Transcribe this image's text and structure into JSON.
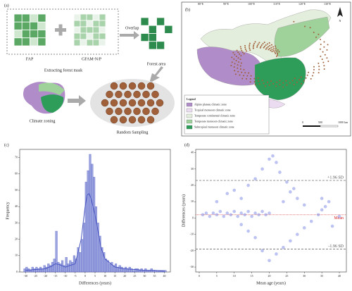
{
  "panel_a": {
    "label": "(a)",
    "fap": "FAP",
    "gfam": "GFAM-N/P",
    "overlap": "Overlap",
    "extracting": "Extracting forest mask",
    "forest_area": "Forest area",
    "climate_zoning": "Climate zoning",
    "random_sampling": "Random Sampling"
  },
  "panel_b": {
    "label": "(b)",
    "north": "N",
    "lon_labels": [
      "80°E",
      "90°E",
      "100°E",
      "110°E",
      "120°E",
      "130°E"
    ],
    "legend_title": "Legend",
    "zones": [
      {
        "name": "Alpine plateau climatic zone",
        "color": "#b08cc8"
      },
      {
        "name": "Tropical monsoon climatic zone",
        "color": "#ecdcf2"
      },
      {
        "name": "Temperate continental climatic zone",
        "color": "#e4eedc"
      },
      {
        "name": "Temperate monsoon climatic zone",
        "color": "#9fd19a"
      },
      {
        "name": "Subtropical monsoon climatic zone",
        "color": "#2e9d5a"
      }
    ],
    "scale_labels": [
      "0",
      "500",
      "1000 km"
    ]
  },
  "chart_data": [
    {
      "type": "histogram",
      "label": "(c)",
      "x_label": "Differences (years)",
      "y_label": "Frequency",
      "color": "#7b86d6",
      "line_color": "#4a56c0",
      "bins": [
        -31,
        -30,
        -29,
        -28,
        -27,
        -26,
        -25,
        -24,
        -23,
        -22,
        -21,
        -20,
        -19,
        -18,
        -17,
        -16,
        -15,
        -14,
        -13,
        -12,
        -11,
        -10,
        -9,
        -8,
        -7,
        -6,
        -5,
        -4,
        -3,
        -2,
        -1,
        0,
        1,
        2,
        3,
        4,
        5,
        6,
        7,
        8,
        9,
        10,
        11,
        12,
        13,
        14,
        15,
        16,
        17,
        18,
        19,
        20,
        21,
        22,
        23,
        24,
        25,
        26,
        27,
        28,
        29,
        30,
        31,
        32,
        33,
        34,
        35,
        36,
        37,
        38,
        39,
        40,
        41
      ],
      "values": [
        2,
        3,
        2,
        1,
        3,
        2,
        3,
        2,
        3,
        2,
        4,
        3,
        5,
        4,
        6,
        8,
        25,
        6,
        5,
        7,
        4,
        9,
        5,
        7,
        6,
        10,
        8,
        15,
        12,
        20,
        30,
        55,
        62,
        72,
        66,
        58,
        40,
        30,
        22,
        15,
        12,
        8,
        7,
        5,
        6,
        4,
        5,
        3,
        4,
        3,
        2,
        3,
        2,
        3,
        2,
        1,
        2,
        2,
        1,
        2,
        1,
        2,
        1,
        1,
        2,
        1,
        1,
        1,
        1,
        1,
        1,
        1
      ],
      "kde": {
        "x": [
          -30,
          -25,
          -20,
          -17,
          -15,
          -13,
          -10,
          -5,
          -2,
          0,
          1,
          2,
          3,
          5,
          8,
          10,
          15,
          20,
          25,
          30,
          35,
          40
        ],
        "values": [
          1,
          1.5,
          2,
          3.5,
          5,
          4.5,
          3,
          5,
          20,
          40,
          47,
          48,
          45,
          35,
          15,
          8,
          3,
          2,
          1.5,
          1,
          1,
          0.5
        ]
      },
      "xlim": [
        -33,
        43
      ],
      "xticks": [
        -30,
        -25,
        -20,
        -15,
        -10,
        -5,
        0,
        5,
        10,
        15,
        20,
        25,
        30,
        35,
        40
      ],
      "ylim": [
        0,
        75
      ],
      "yticks": [
        0,
        10,
        20,
        30,
        40,
        50,
        60,
        70
      ]
    },
    {
      "type": "scatter",
      "label": "(d)",
      "x_label": "Mean age (years)",
      "y_label": "Differences (years)",
      "color": "#6a78e0",
      "x": [
        1,
        2,
        3,
        4,
        5,
        6,
        7,
        8,
        9,
        10,
        11,
        12,
        13,
        14,
        15,
        16,
        17,
        18,
        19,
        20,
        14,
        16,
        18,
        20,
        21,
        22,
        23,
        25,
        27,
        5,
        8,
        10,
        12,
        24,
        26,
        28,
        30,
        12,
        14,
        16,
        18,
        20,
        22,
        24,
        26,
        28,
        30,
        32,
        34,
        35,
        36,
        38,
        40,
        37,
        35
      ],
      "y": [
        2,
        3,
        1,
        3,
        2,
        4,
        1,
        3,
        2,
        4,
        1,
        3,
        2,
        4,
        1,
        3,
        2,
        4,
        2,
        3,
        20,
        24,
        30,
        36,
        38,
        34,
        28,
        22,
        18,
        10,
        15,
        17,
        12,
        10,
        16,
        12,
        8,
        -4,
        -8,
        -12,
        -20,
        -26,
        -22,
        -18,
        -14,
        -10,
        -6,
        -2,
        2,
        5,
        7,
        -5,
        1,
        10,
        12
      ],
      "ref_lines": [
        {
          "value": 23,
          "label": "+1.96 SD",
          "color": "#555555"
        },
        {
          "value": 2,
          "label": "Mean",
          "color": "#d62728"
        },
        {
          "value": -19,
          "label": "-1.96 SD",
          "color": "#555555"
        }
      ],
      "xlim": [
        -1,
        42
      ],
      "xticks": [
        0,
        5,
        10,
        15,
        20,
        25,
        30,
        35,
        40
      ],
      "ylim": [
        -33,
        42
      ],
      "yticks": [
        -30,
        -20,
        -10,
        0,
        10,
        20,
        30,
        40
      ]
    }
  ]
}
